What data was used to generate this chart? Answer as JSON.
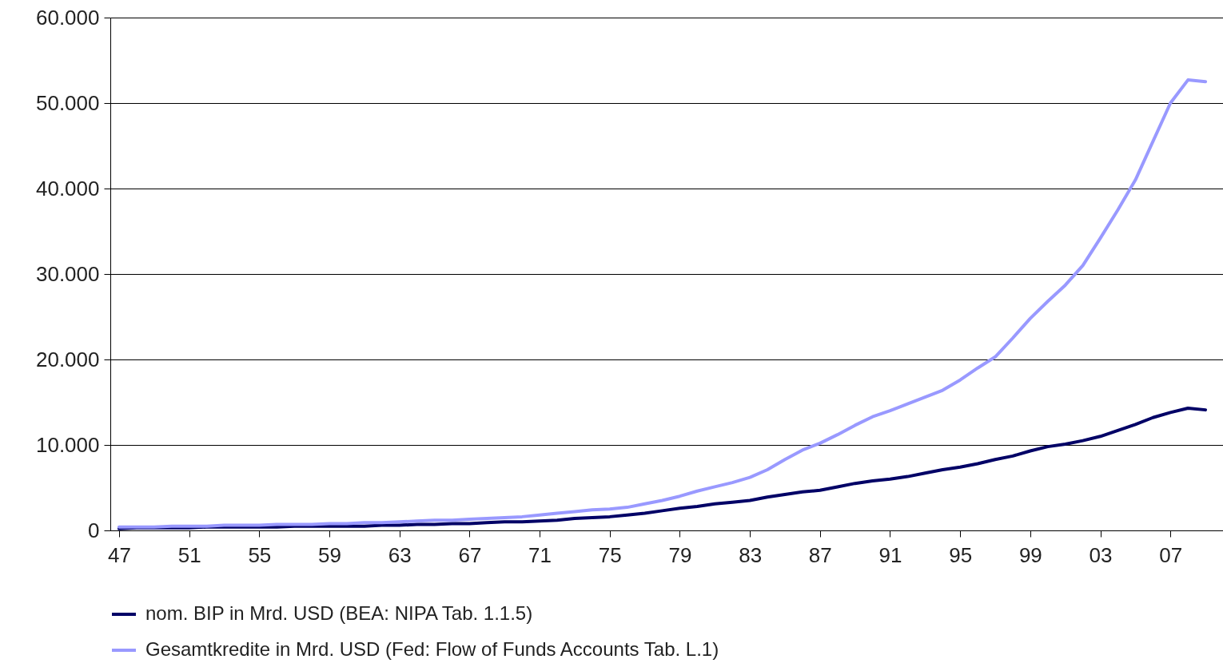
{
  "chart_data": {
    "type": "line",
    "categories": [
      "47",
      null,
      null,
      null,
      "51",
      null,
      null,
      null,
      "55",
      null,
      null,
      null,
      "59",
      null,
      null,
      null,
      "63",
      null,
      null,
      null,
      "67",
      null,
      null,
      null,
      "71",
      null,
      null,
      null,
      "75",
      null,
      null,
      null,
      "79",
      null,
      null,
      null,
      "83",
      null,
      null,
      null,
      "87",
      null,
      null,
      null,
      "91",
      null,
      null,
      null,
      "95",
      null,
      null,
      null,
      "99",
      null,
      null,
      null,
      "03",
      null,
      null,
      null,
      "07",
      null,
      null
    ],
    "series": [
      {
        "name": "nom. BIP in Mrd. USD (BEA: NIPA Tab. 1.1.5)",
        "color": "#000066",
        "values": [
          200,
          300,
          300,
          300,
          300,
          400,
          400,
          400,
          400,
          400,
          500,
          500,
          500,
          500,
          500,
          600,
          600,
          700,
          700,
          800,
          800,
          900,
          1000,
          1000,
          1100,
          1200,
          1400,
          1500,
          1600,
          1800,
          2000,
          2300,
          2600,
          2800,
          3100,
          3300,
          3500,
          3900,
          4200,
          4500,
          4700,
          5100,
          5500,
          5800,
          6000,
          6300,
          6700,
          7100,
          7400,
          7800,
          8300,
          8700,
          9300,
          9800,
          10100,
          10500,
          11000,
          11700,
          12400,
          13200,
          13800,
          14300,
          14100
        ]
      },
      {
        "name": "Gesamtkredite in Mrd. USD (Fed: Flow of Funds Accounts Tab. L.1)",
        "color": "#9999ff",
        "values": [
          400,
          400,
          400,
          500,
          500,
          500,
          600,
          600,
          600,
          700,
          700,
          700,
          800,
          800,
          900,
          900,
          1000,
          1100,
          1200,
          1200,
          1300,
          1400,
          1500,
          1600,
          1800,
          2000,
          2200,
          2400,
          2500,
          2700,
          3100,
          3500,
          4000,
          4600,
          5100,
          5600,
          6200,
          7100,
          8300,
          9400,
          10200,
          11200,
          12300,
          13300,
          14000,
          14800,
          15600,
          16400,
          17600,
          19000,
          20300,
          22500,
          24800,
          26800,
          28700,
          31000,
          34200,
          37500,
          41000,
          45500,
          50000,
          52700,
          52500
        ]
      }
    ],
    "ylim": [
      0,
      60000
    ],
    "yticks": [
      0,
      {
        "value": 10000,
        "label": "10.000"
      },
      {
        "value": 20000,
        "label": "20.000"
      },
      {
        "value": 30000,
        "label": "30.000"
      },
      {
        "value": 40000,
        "label": "40.000"
      },
      {
        "value": 50000,
        "label": "50.000"
      },
      {
        "value": 60000,
        "label": "60.000"
      }
    ],
    "grid": "y",
    "legend": "bottom",
    "line_style": "solid"
  }
}
